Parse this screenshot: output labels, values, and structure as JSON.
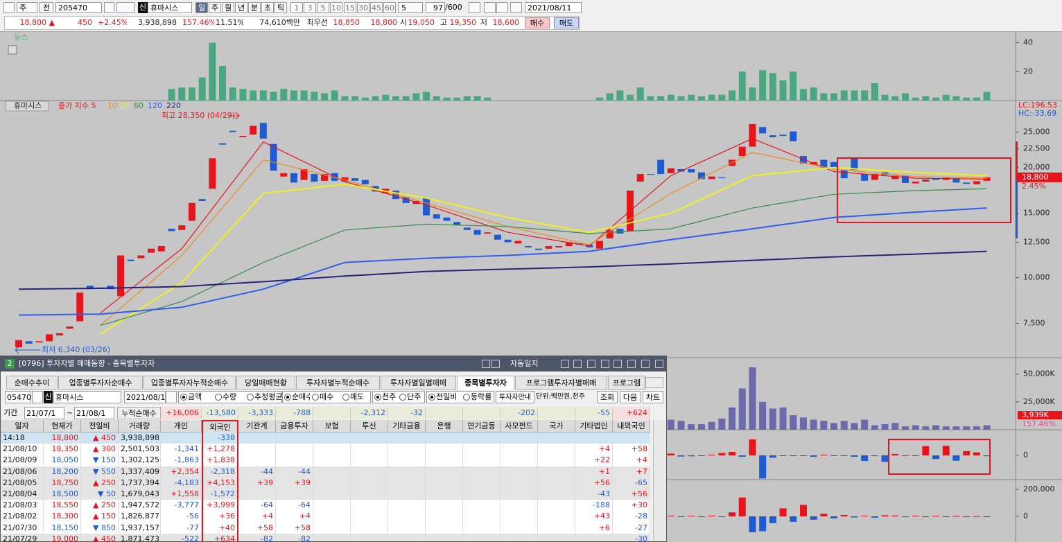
{
  "toolbar": {
    "period_type": "주",
    "prev": "전",
    "code": "205470",
    "badge": "신",
    "name": "휴마시스",
    "intervals": [
      "일",
      "주",
      "월",
      "년",
      "분",
      "초",
      "틱"
    ],
    "minutes": [
      "1",
      "3",
      "5",
      "10",
      "15",
      "30",
      "45",
      "60"
    ],
    "count": "5",
    "bars": "97",
    "max_bars": "/600",
    "date": "2021/08/11"
  },
  "quote": {
    "price": "18,800",
    "sign": "▲",
    "change": "450",
    "rate": "+2.45%",
    "volume": "3,938,898",
    "vol_ratio": "157.46%",
    "turnover": "11.51%",
    "amount": "74,610백만",
    "best": "최우선",
    "ask": "18,850",
    "bid": "18,800",
    "open_label": "시",
    "open": "19,050",
    "high_label": "고",
    "high": "19,350",
    "low_label": "저",
    "low": "18,600",
    "buy": "매수",
    "sell": "매도"
  },
  "chart_data": [
    {
      "type": "candlestick",
      "title": "휴마시스",
      "xlim": [
        -1.16,
        97.82
      ],
      "ylim": [
        6150,
        30500
      ],
      "log": true,
      "yticks": [
        {
          "value": 25000,
          "label": "25,000"
        },
        {
          "value": 22500,
          "label": "22,500"
        },
        {
          "value": 20000,
          "label": "20,000"
        },
        {
          "value": 15000,
          "label": "15,000"
        },
        {
          "value": 12500,
          "label": "12,500"
        },
        {
          "value": 10000,
          "label": "10,000"
        },
        {
          "value": 7500,
          "label": "7,500"
        }
      ],
      "up_color": "#e8141c",
      "down_color": "#1e5ad2",
      "open": [
        6450,
        6700,
        6650,
        6700,
        6950,
        7250,
        7600,
        9500,
        9400,
        9500,
        8900,
        11200,
        11300,
        11700,
        11800,
        13600,
        13500,
        14300,
        16400,
        17500,
        23300,
        25200,
        24200,
        24600,
        26500,
        23200,
        18900,
        19300,
        18500,
        19200,
        18400,
        19300,
        18300,
        18700,
        18500,
        17800,
        17000,
        17300,
        16600,
        15900,
        16500,
        14900,
        14600,
        14200,
        13700,
        13500,
        13200,
        13100,
        12700,
        12400,
        12200,
        12000,
        12000,
        12100,
        12200,
        12400,
        12300,
        12000,
        12800,
        13600,
        13400,
        18300,
        19200,
        21000,
        19300,
        19800,
        19800,
        19400,
        18600,
        18800,
        20200,
        21500,
        22800,
        25800,
        24500,
        24600,
        25100,
        21500,
        20400,
        21000,
        20700,
        19700,
        21200,
        19200,
        18500,
        19400,
        18600,
        19000,
        18100,
        18300,
        18650,
        18500,
        18700,
        18200,
        18000,
        18400
      ],
      "close": [
        6750,
        6600,
        6700,
        7000,
        7050,
        7350,
        9100,
        9300,
        9350,
        9300,
        11500,
        11100,
        11500,
        12000,
        12200,
        13400,
        13900,
        16000,
        16200,
        21200,
        23100,
        25000,
        24400,
        26000,
        24000,
        19600,
        19300,
        18200,
        19800,
        18300,
        19200,
        18400,
        18800,
        18400,
        18000,
        17200,
        17500,
        16400,
        16000,
        16200,
        14800,
        14500,
        14300,
        13900,
        13500,
        13100,
        13300,
        12700,
        12500,
        12600,
        12100,
        11900,
        12200,
        12200,
        12500,
        12300,
        12100,
        12600,
        13500,
        13200,
        17300,
        19200,
        19100,
        19200,
        19900,
        19500,
        19400,
        18600,
        18900,
        18700,
        21000,
        22800,
        26300,
        24800,
        24200,
        24400,
        23600,
        20500,
        20700,
        20000,
        19900,
        18700,
        19700,
        18400,
        19200,
        19100,
        19000,
        18150,
        18300,
        18550,
        18500,
        18750,
        18200,
        18050,
        18350,
        18800
      ],
      "series": [
        {
          "name": "종가 지수 5",
          "color": "#e8141c",
          "x": [
            0,
            8,
            16,
            24,
            32,
            40,
            48,
            56,
            64,
            72,
            80,
            88,
            95
          ],
          "values": [
            null,
            8000,
            12000,
            23500,
            18300,
            15800,
            13300,
            12200,
            19000,
            24000,
            19500,
            18700,
            18600
          ]
        },
        {
          "name": "10",
          "color": "#f08a1c",
          "x": [
            0,
            8,
            16,
            24,
            32,
            40,
            48,
            56,
            64,
            72,
            80,
            88,
            95
          ],
          "values": [
            null,
            7400,
            11500,
            21000,
            18500,
            16000,
            13800,
            12300,
            17000,
            22000,
            19800,
            18900,
            18700
          ]
        },
        {
          "name": "20",
          "color": "#f4f020",
          "x": [
            0,
            8,
            16,
            24,
            32,
            40,
            48,
            56,
            64,
            72,
            80,
            88,
            95
          ],
          "values": [
            null,
            7000,
            9700,
            17000,
            18000,
            16500,
            14600,
            13300,
            15000,
            19000,
            20000,
            19400,
            19000
          ]
        },
        {
          "name": "60",
          "color": "#3a8a4a",
          "x": [
            0,
            8,
            16,
            24,
            32,
            40,
            48,
            56,
            64,
            72,
            80,
            88,
            95
          ],
          "values": [
            null,
            7400,
            8600,
            11000,
            13500,
            14000,
            13800,
            13200,
            13600,
            15500,
            16900,
            17300,
            17500
          ]
        },
        {
          "name": "120",
          "color": "#2e5ef0",
          "x": [
            0,
            8,
            16,
            24,
            32,
            40,
            48,
            56,
            64,
            72,
            80,
            88,
            95
          ],
          "values": [
            7900,
            7950,
            8300,
            9300,
            11000,
            11300,
            11500,
            11800,
            12700,
            13600,
            14600,
            15100,
            15500
          ]
        },
        {
          "name": "220",
          "color": "#24247a",
          "x": [
            0,
            8,
            16,
            24,
            32,
            40,
            48,
            56,
            64,
            72,
            80,
            88,
            95
          ],
          "values": [
            9300,
            9350,
            9450,
            9750,
            10100,
            10400,
            10550,
            10700,
            10900,
            11150,
            11400,
            11600,
            11800
          ]
        }
      ],
      "high_note": "최고 28,350 (04/29)",
      "low_note": "최저 6,340 (03/26)",
      "last_price": {
        "value": 18800,
        "label": "18,800"
      },
      "change_label": "2.45%",
      "lc": "LC:196.53",
      "hc": "HC:-33.69"
    },
    {
      "type": "bar",
      "title": "뉴스",
      "xlim": [
        -1.16,
        97.82
      ],
      "ylim": [
        0,
        47.5
      ],
      "yticks": [
        20,
        40
      ],
      "color": "#4aa880",
      "x": [
        15,
        16,
        17,
        18,
        19,
        20,
        21,
        22,
        23,
        24,
        25,
        26,
        27,
        28,
        29,
        30,
        31,
        32,
        33,
        34,
        35,
        36,
        37,
        38,
        39,
        40,
        41,
        42,
        43,
        44,
        45,
        46,
        57,
        58,
        59,
        60,
        61,
        62,
        63,
        64,
        65,
        66,
        67,
        68,
        69,
        70,
        71,
        72,
        73,
        74,
        75,
        76,
        77,
        78,
        79,
        80,
        81,
        82,
        83,
        84,
        85,
        86,
        87,
        88,
        89,
        90,
        91,
        92,
        93,
        94,
        95
      ],
      "values": [
        8,
        9,
        9,
        16,
        40,
        24,
        9,
        8,
        7,
        7,
        6,
        8,
        7,
        7,
        6,
        5,
        7,
        3,
        3,
        2,
        3,
        4,
        3,
        3,
        5,
        6,
        3,
        2,
        2,
        3,
        3,
        2,
        2,
        5,
        7,
        4,
        9,
        3,
        3,
        4,
        3,
        4,
        3,
        4,
        4,
        7,
        20,
        9,
        21,
        19,
        14,
        20,
        8,
        9,
        5,
        5,
        7,
        7,
        7,
        12,
        4,
        3,
        5,
        2,
        3,
        2,
        4,
        3,
        2,
        2,
        6
      ]
    },
    {
      "type": "bar",
      "xlim": [
        -1.16,
        97.82
      ],
      "ylim": [
        0,
        64100
      ],
      "yticks": [
        {
          "value": 25000,
          "label": "25,000K"
        },
        {
          "value": 50000,
          "label": "50,000K"
        }
      ],
      "color": "#6a6aac",
      "x": [
        64,
        65,
        66,
        67,
        68,
        69,
        70,
        71,
        72,
        73,
        74,
        75,
        76,
        77,
        78,
        79,
        80,
        81,
        82,
        83,
        84,
        85,
        86,
        87,
        88,
        89,
        90,
        91,
        92,
        93,
        94,
        95
      ],
      "values": [
        9000,
        8000,
        5000,
        5000,
        7000,
        10000,
        20000,
        37000,
        56000,
        25000,
        19000,
        20000,
        13000,
        11000,
        9000,
        8000,
        6000,
        8000,
        6000,
        9000,
        4000,
        5000,
        6000,
        3000,
        4000,
        3000,
        4000,
        3000,
        3000,
        3000,
        3000,
        3939
      ],
      "last_label": "3,939K",
      "ratio_label": "157.46%"
    },
    {
      "type": "bar",
      "xlim": [
        -1.16,
        97.82
      ],
      "ylim": [
        -10500,
        11100
      ],
      "yticks": [
        0
      ],
      "up_color": "#e8141c",
      "down_color": "#1e5ad2",
      "x": [
        64,
        65,
        66,
        67,
        68,
        69,
        70,
        71,
        72,
        73,
        74,
        75,
        76,
        77,
        78,
        79,
        80,
        81,
        82,
        83,
        84,
        85,
        86,
        87,
        88,
        89,
        90,
        91,
        92,
        93,
        94,
        95
      ],
      "values": [
        800,
        -500,
        -400,
        -200,
        300,
        1000,
        1500,
        -600,
        6900,
        -10000,
        -1000,
        -300,
        -300,
        -200,
        -600,
        300,
        -200,
        -200,
        -600,
        -2400,
        -200,
        -2800,
        634,
        40,
        36,
        3999,
        -1572,
        4153,
        -2318,
        1838,
        1278,
        -338
      ]
    },
    {
      "type": "bar",
      "xlim": [
        -1.16,
        97.82
      ],
      "ylim": [
        -159000,
        272000
      ],
      "yticks": [
        0,
        {
          "value": 200000,
          "label": "200,000"
        }
      ],
      "up_color": "#e8141c",
      "down_color": "#1e5ad2",
      "x": [
        64,
        65,
        66,
        67,
        68,
        69,
        70,
        71,
        72,
        73,
        74,
        75,
        76,
        77,
        78,
        79,
        80,
        81,
        82,
        83,
        84,
        85,
        86,
        87,
        88,
        89,
        90,
        91,
        92,
        93,
        94,
        95
      ],
      "values": [
        5000,
        -3000,
        4000,
        -2000,
        6000,
        -5000,
        30000,
        140000,
        -118000,
        -110000,
        -50000,
        60000,
        -40000,
        85000,
        -25000,
        20000,
        -15000,
        10000,
        -8000,
        5000,
        -10000,
        8000,
        6000,
        -4000,
        5000,
        -3000,
        4000,
        -3000,
        3000,
        -2000,
        2000,
        -1000
      ]
    }
  ],
  "window": {
    "number": "2",
    "title": "[0796] 투자자별 매매동향 - 종목별투자자",
    "auto_diary": "자동일지",
    "tabs": [
      "순매수추이",
      "업종별투자자순매수",
      "업종별투자자누적순매수",
      "당일매매현황",
      "투자자별누적순매수",
      "투자자별일별매매",
      "종목별투자자",
      "프로그램투자자별매매",
      "프로그램"
    ],
    "controls": {
      "code": "05470",
      "badge": "신",
      "name": "휴마시스",
      "date": "2021/08/1",
      "value_type": [
        "금액",
        "수량",
        "추정평균"
      ],
      "trade_type": [
        "순매수",
        "매수",
        "매도"
      ],
      "unit_type": [
        "천주",
        "단주"
      ],
      "compare": [
        "전일비",
        "등락률"
      ],
      "guide": "투자자안내",
      "unit": "단위:백만원,천주",
      "query": "조회",
      "next": "다음",
      "chart": "차트"
    },
    "period": {
      "label": "기간",
      "from": "21/07/1",
      "sep": "~",
      "to": "21/08/1",
      "total_label": "누적순매수",
      "totals": [
        "+16,006",
        "-13,580",
        "-3,333",
        "-788",
        null,
        "-2,312",
        "-32",
        null,
        null,
        "-202",
        null,
        "-55",
        "+624"
      ]
    },
    "table": {
      "header": [
        "일자",
        "현재가",
        "전일비",
        "거래량",
        "개인",
        "외국인",
        "기관계",
        "금융투자",
        "보험",
        "투신",
        "기타금융",
        "은행",
        "연기금등",
        "사모펀드",
        "국가",
        "기타법인",
        "내외국인"
      ],
      "rows": [
        [
          "14:18",
          "18,800",
          "▲ 450",
          "3,938,898",
          null,
          "-338",
          null,
          null,
          null,
          null,
          null,
          null,
          null,
          null,
          null,
          null,
          null
        ],
        [
          "21/08/10",
          "18,350",
          "▲ 300",
          "2,501,503",
          "-1,341",
          "+1,278",
          null,
          null,
          null,
          null,
          null,
          null,
          null,
          null,
          null,
          "+4",
          "+58"
        ],
        [
          "21/08/09",
          "18,050",
          "▼ 150",
          "1,302,125",
          "-1,863",
          "+1,838",
          null,
          null,
          null,
          null,
          null,
          null,
          null,
          null,
          null,
          "+22",
          "+4"
        ],
        [
          "21/08/06",
          "18,200",
          "▼ 550",
          "1,337,409",
          "+2,354",
          "-2,318",
          "-44",
          "-44",
          null,
          null,
          null,
          null,
          null,
          null,
          null,
          "+1",
          "+7"
        ],
        [
          "21/08/05",
          "18,750",
          "▲ 250",
          "1,737,394",
          "-4,183",
          "+4,153",
          "+39",
          "+39",
          null,
          null,
          null,
          null,
          null,
          null,
          null,
          "+56",
          "-65"
        ],
        [
          "21/08/04",
          "18,500",
          "▼ 50",
          "1,679,043",
          "+1,558",
          "-1,572",
          null,
          null,
          null,
          null,
          null,
          null,
          null,
          null,
          null,
          "-43",
          "+56"
        ],
        [
          "21/08/03",
          "18,550",
          "▲ 250",
          "1,947,572",
          "-3,777",
          "+3,999",
          "-64",
          "-64",
          null,
          null,
          null,
          null,
          null,
          null,
          null,
          "-188",
          "+30"
        ],
        [
          "21/08/02",
          "18,300",
          "▲ 150",
          "1,826,877",
          "-56",
          "+36",
          "+4",
          "+4",
          null,
          null,
          null,
          null,
          null,
          null,
          null,
          "+43",
          "-28"
        ],
        [
          "21/07/30",
          "18,150",
          "▼ 850",
          "1,937,157",
          "-77",
          "+40",
          "+58",
          "+58",
          null,
          null,
          null,
          null,
          null,
          null,
          null,
          "+6",
          "-27"
        ],
        [
          "21/07/29",
          "19,000",
          "▲ 450",
          "1,871,473",
          "-522",
          "+634",
          "-82",
          "-82",
          null,
          null,
          null,
          null,
          null,
          null,
          null,
          null,
          "-30"
        ]
      ]
    }
  }
}
